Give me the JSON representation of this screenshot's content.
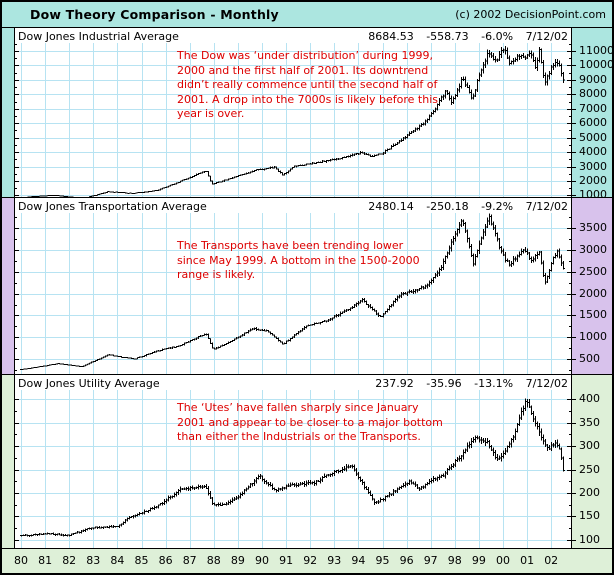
{
  "window": {
    "title": "Dow Theory Comparison - Monthly",
    "copyright": "(c) 2002 DecisionPoint.com"
  },
  "colors": {
    "header_bg": "#ace6e0",
    "footer_bg": "#def0d8",
    "grid": "#b7e3f2",
    "annotation": "#dd0000",
    "bars": "#000000"
  },
  "x_axis": {
    "labels": [
      "80",
      "81",
      "82",
      "83",
      "84",
      "85",
      "86",
      "87",
      "88",
      "89",
      "90",
      "91",
      "92",
      "93",
      "94",
      "95",
      "96",
      "97",
      "98",
      "99",
      "00",
      "01",
      "02"
    ]
  },
  "chart_data": [
    {
      "type": "line",
      "style": "monthly-high-low-bars",
      "title": "Dow Jones Industrial Average",
      "quote": {
        "last": "8684.53",
        "change": "-558.73",
        "change_pct": "-6.0%",
        "date": "7/12/02"
      },
      "annotation": "The Dow was ‘under distribution’ during 1999,\n2000 and the first half of 2001. Its downtrend\ndidn’t really commence until the second half of\n2001. A drop into the 7000s is likely before this\nyear is over.",
      "accent_color": "#ace6e0",
      "x_range": [
        1980,
        2002.54
      ],
      "ylim": [
        820,
        11550
      ],
      "yticks": [
        1000,
        2000,
        3000,
        4000,
        5000,
        6000,
        7000,
        8000,
        9000,
        10000,
        11000
      ],
      "x": [
        1980.0,
        1980.9,
        1981.4,
        1982.6,
        1983.6,
        1984.6,
        1985.6,
        1986.4,
        1987.65,
        1987.9,
        1988.5,
        1989.8,
        1990.5,
        1990.85,
        1991.3,
        1992.3,
        1993.2,
        1994.1,
        1994.6,
        1995.0,
        1996.0,
        1996.7,
        1997.1,
        1997.6,
        1997.85,
        1998.3,
        1998.7,
        1999.0,
        1999.35,
        1999.7,
        2000.05,
        2000.25,
        2000.6,
        2000.95,
        2001.1,
        2001.35,
        2001.5,
        2001.72,
        2002.0,
        2002.3,
        2002.54
      ],
      "values": [
        850,
        960,
        1000,
        800,
        1250,
        1130,
        1340,
        1850,
        2700,
        1780,
        2080,
        2780,
        2950,
        2400,
        3000,
        3280,
        3550,
        3950,
        3680,
        3950,
        5150,
        6000,
        6850,
        8250,
        7400,
        9150,
        7650,
        9350,
        10800,
        10350,
        11300,
        10100,
        10700,
        10500,
        10850,
        9900,
        11100,
        8700,
        9900,
        10300,
        8684
      ]
    },
    {
      "type": "line",
      "style": "monthly-high-low-bars",
      "title": "Dow Jones Transportation Average",
      "quote": {
        "last": "2480.14",
        "change": "-250.18",
        "change_pct": "-9.2%",
        "date": "7/12/02"
      },
      "annotation": "The Transports have been trending lower\nsince May 1999. A bottom in the 1500-2000\nrange is likely.",
      "accent_color": "#d8c2ec",
      "x_range": [
        1980,
        2002.54
      ],
      "ylim": [
        140,
        3840
      ],
      "yticks": [
        500,
        1000,
        1500,
        2000,
        2500,
        3000,
        3500
      ],
      "x": [
        1980.0,
        1981.0,
        1981.5,
        1982.5,
        1983.6,
        1984.7,
        1985.6,
        1986.5,
        1987.65,
        1987.95,
        1988.6,
        1989.6,
        1990.2,
        1990.85,
        1991.9,
        1992.6,
        1993.8,
        1994.15,
        1994.9,
        1995.7,
        1996.2,
        1996.8,
        1997.4,
        1997.95,
        1998.3,
        1998.75,
        1999.0,
        1999.4,
        1999.95,
        2000.25,
        2000.55,
        2000.9,
        2001.15,
        2001.5,
        2001.72,
        2002.0,
        2002.25,
        2002.54
      ],
      "values": [
        265,
        350,
        400,
        330,
        600,
        505,
        690,
        800,
        1090,
        720,
        880,
        1200,
        1150,
        840,
        1280,
        1360,
        1700,
        1860,
        1470,
        1980,
        2050,
        2180,
        2580,
        3300,
        3680,
        2680,
        3150,
        3780,
        2900,
        2650,
        2850,
        3000,
        2730,
        2980,
        2200,
        2700,
        3000,
        2480
      ]
    },
    {
      "type": "line",
      "style": "monthly-high-low-bars",
      "title": "Dow Jones Utility Average",
      "quote": {
        "last": "237.92",
        "change": "-35.96",
        "change_pct": "-13.1%",
        "date": "7/12/02"
      },
      "annotation": "The ‘Utes’ have fallen sharply since January\n2001 and appear to be closer to a major bottom\nthan either the Industrials or the Transports.",
      "accent_color": "#def0d8",
      "x_range": [
        1980,
        2002.54
      ],
      "ylim": [
        80,
        420
      ],
      "yticks": [
        100,
        150,
        200,
        250,
        300,
        350,
        400
      ],
      "x": [
        1980.0,
        1981.0,
        1982.0,
        1982.9,
        1984.0,
        1984.5,
        1985.6,
        1986.6,
        1987.6,
        1987.95,
        1988.6,
        1989.0,
        1989.9,
        1990.5,
        1991.1,
        1992.2,
        1993.0,
        1993.7,
        1994.1,
        1994.7,
        1995.5,
        1996.1,
        1996.5,
        1997.0,
        1997.5,
        1998.1,
        1998.8,
        1999.3,
        1999.75,
        2000.1,
        2000.4,
        2000.95,
        2001.15,
        2001.4,
        2001.65,
        2001.9,
        2002.15,
        2002.35,
        2002.54
      ],
      "values": [
        108,
        113,
        109,
        125,
        128,
        148,
        170,
        207,
        216,
        172,
        178,
        192,
        236,
        205,
        215,
        222,
        245,
        258,
        225,
        178,
        205,
        225,
        208,
        228,
        238,
        272,
        318,
        310,
        272,
        290,
        320,
        400,
        370,
        345,
        310,
        295,
        308,
        295,
        238
      ]
    }
  ]
}
